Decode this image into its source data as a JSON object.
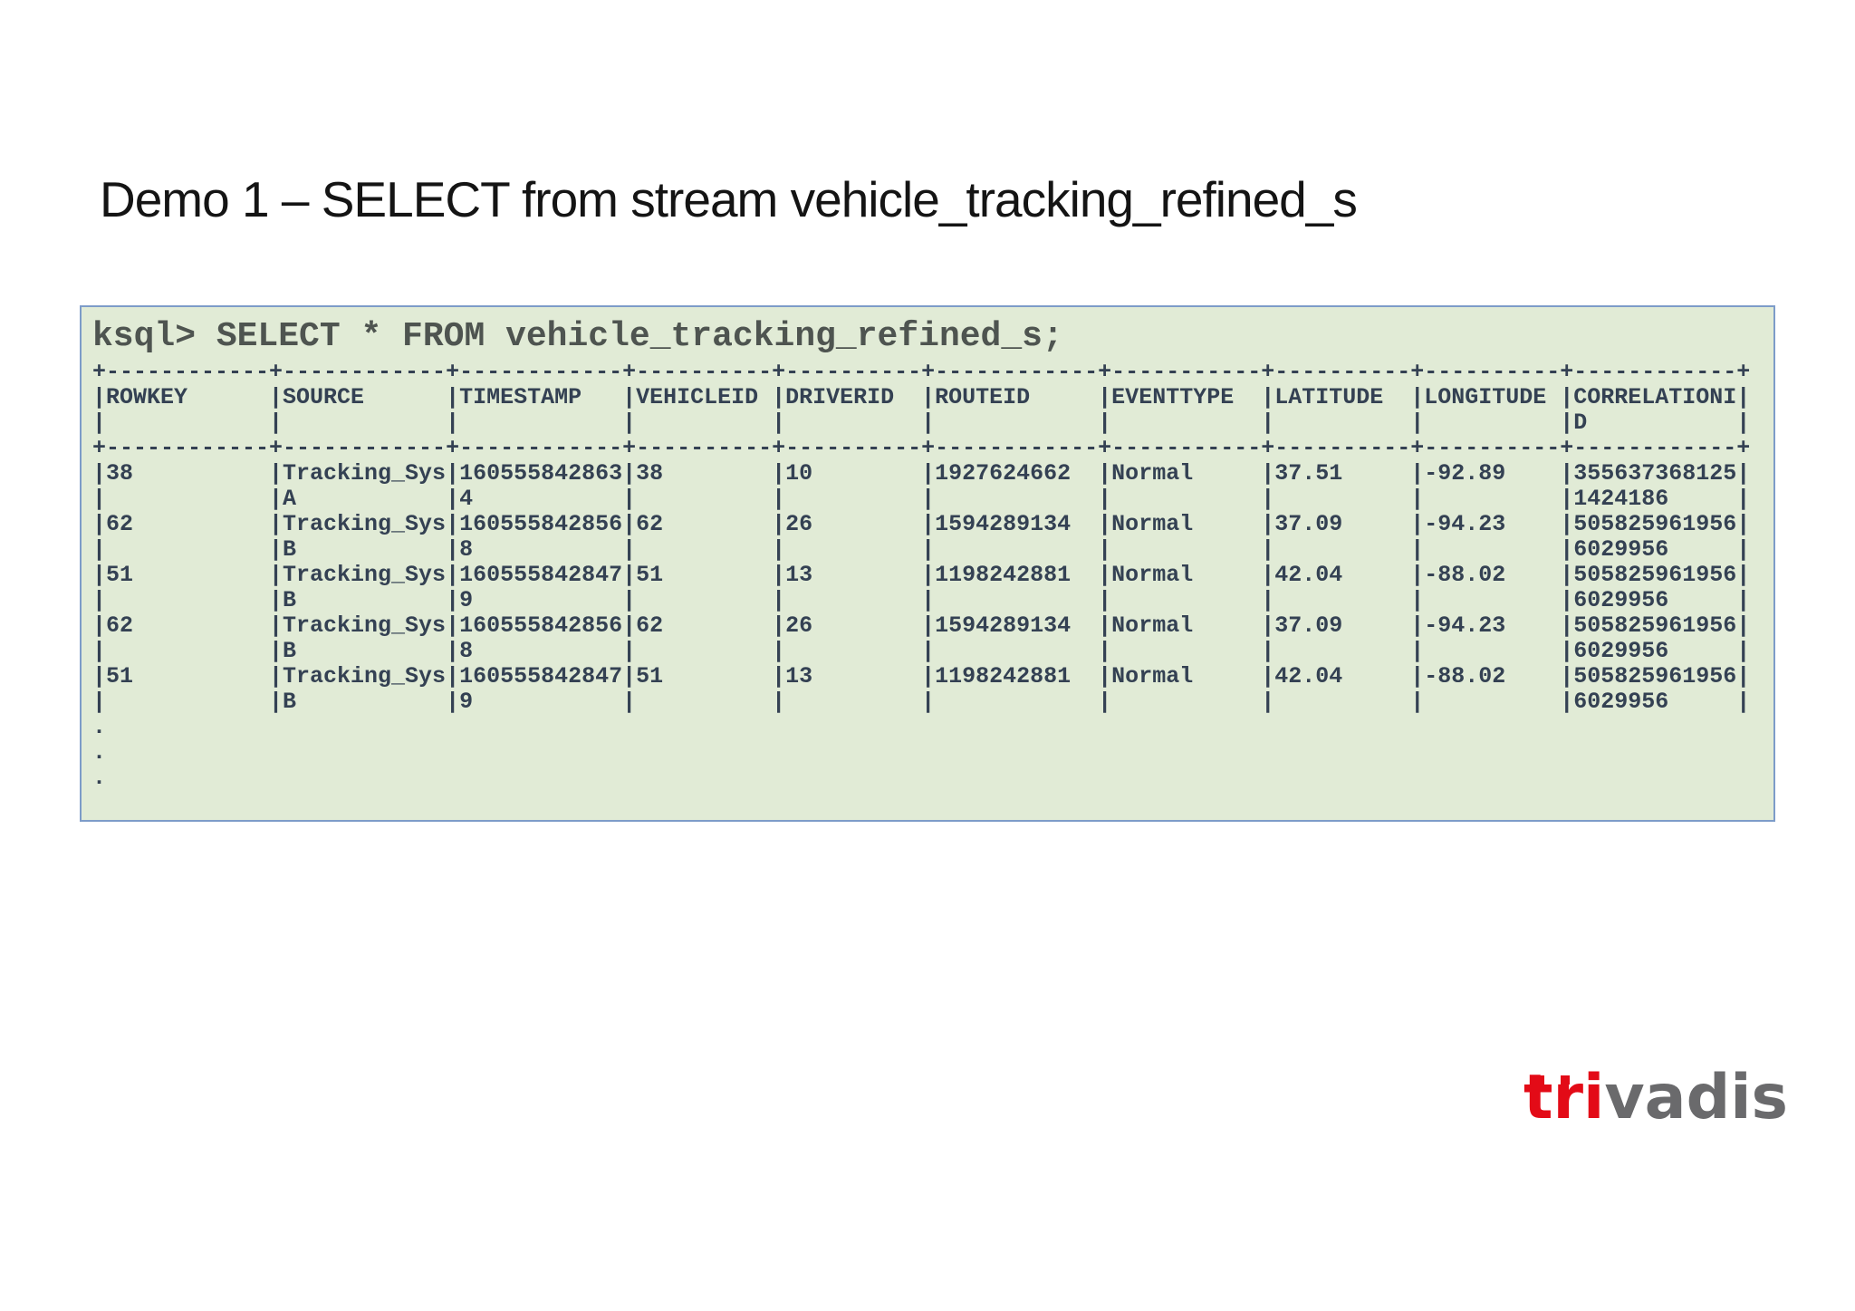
{
  "slide": {
    "title": "Demo 1 – SELECT from stream vehicle_tracking_refined_s"
  },
  "console": {
    "prompt": "ksql> SELECT * FROM vehicle_tracking_refined_s;",
    "output_lines": [
      "+------------+------------+------------+----------+----------+------------+-----------+----------+----------+------------+",
      "|ROWKEY      |SOURCE      |TIMESTAMP   |VEHICLEID |DRIVERID  |ROUTEID     |EVENTTYPE  |LATITUDE  |LONGITUDE |CORRELATIONI|",
      "|            |            |            |          |          |            |           |          |          |D           |",
      "+------------+------------+------------+----------+----------+------------+-----------+----------+----------+------------+",
      "|38          |Tracking_Sys|160555842863|38        |10        |1927624662  |Normal     |37.51     |-92.89    |355637368125|",
      "|            |A           |4           |          |          |            |           |          |          |1424186     |",
      "|62          |Tracking_Sys|160555842856|62        |26        |1594289134  |Normal     |37.09     |-94.23    |505825961956|",
      "|            |B           |8           |          |          |            |           |          |          |6029956     |",
      "|51          |Tracking_Sys|160555842847|51        |13        |1198242881  |Normal     |42.04     |-88.02    |505825961956|",
      "|            |B           |9           |          |          |            |           |          |          |6029956     |",
      "|62          |Tracking_Sys|160555842856|62        |26        |1594289134  |Normal     |37.09     |-94.23    |505825961956|",
      "|            |B           |8           |          |          |            |           |          |          |6029956     |",
      "|51          |Tracking_Sys|160555842847|51        |13        |1198242881  |Normal     |42.04     |-88.02    |505825961956|",
      "|            |B           |9           |          |          |            |           |          |          |6029956     |",
      ".",
      ".",
      "."
    ]
  },
  "result_table": {
    "columns": [
      "ROWKEY",
      "SOURCE",
      "TIMESTAMP",
      "VEHICLEID",
      "DRIVERID",
      "ROUTEID",
      "EVENTTYPE",
      "LATITUDE",
      "LONGITUDE",
      "CORRELATIONID"
    ],
    "rows": [
      [
        "38",
        "Tracking_SysA",
        "1605558428634",
        "38",
        "10",
        "1927624662",
        "Normal",
        "37.51",
        "-92.89",
        "3556373681251424186"
      ],
      [
        "62",
        "Tracking_SysB",
        "1605558428568",
        "62",
        "26",
        "1594289134",
        "Normal",
        "37.09",
        "-94.23",
        "5058259619566029956"
      ],
      [
        "51",
        "Tracking_SysB",
        "1605558428479",
        "51",
        "13",
        "1198242881",
        "Normal",
        "42.04",
        "-88.02",
        "5058259619566029956"
      ],
      [
        "62",
        "Tracking_SysB",
        "1605558428568",
        "62",
        "26",
        "1594289134",
        "Normal",
        "37.09",
        "-94.23",
        "5058259619566029956"
      ],
      [
        "51",
        "Tracking_SysB",
        "1605558428479",
        "51",
        "13",
        "1198242881",
        "Normal",
        "42.04",
        "-88.02",
        "5058259619566029956"
      ]
    ],
    "truncation_indicator": "..."
  },
  "logo": {
    "text": "trivadis",
    "prefix": "tri",
    "suffix": "vadis"
  },
  "colors": {
    "console_background": "#e1ebd6",
    "console_border": "#7d9cc9",
    "console_table_text": "#344153",
    "console_prompt_text": "#4e5450",
    "logo_red": "#e30b17",
    "logo_gray": "#6a6a6c",
    "title_text": "#141414"
  }
}
